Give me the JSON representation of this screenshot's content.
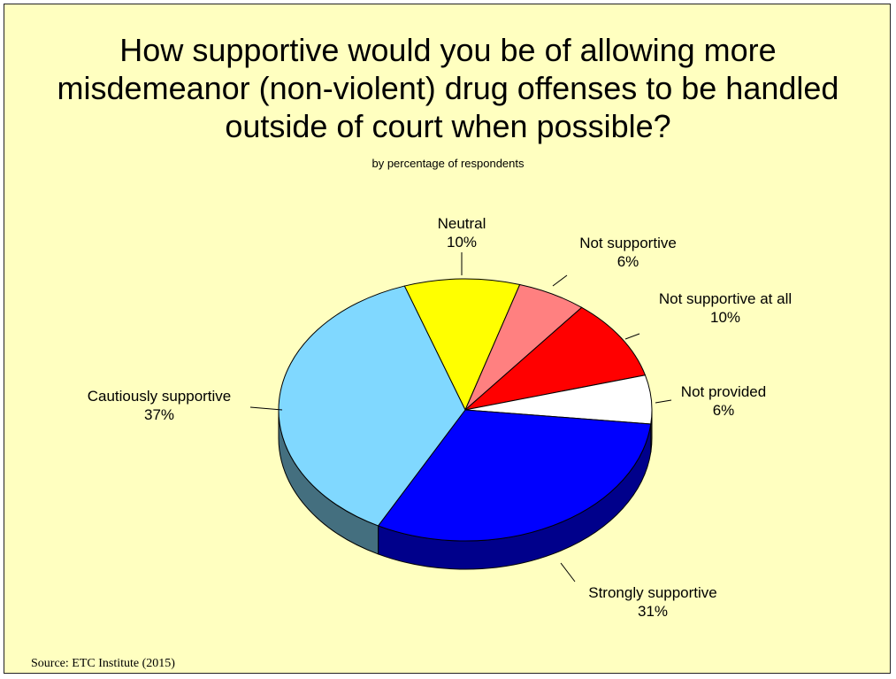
{
  "title_lines": [
    "How supportive would you be of allowing more",
    "misdemeanor (non-violent) drug offenses to be handled",
    "outside of court when possible?"
  ],
  "subtitle": "by percentage of respondents",
  "source": "Source:  ETC Institute (2015)",
  "chart_data": {
    "type": "pie",
    "title": "How supportive would you be of allowing more misdemeanor (non-violent) drug offenses to be handled outside of court when possible?",
    "subtitle": "by percentage of respondents",
    "slices": [
      {
        "label": "Neutral",
        "value": 10,
        "value_label": "10%",
        "color": "#ffff00",
        "side_color": "#aaaa00"
      },
      {
        "label": "Not supportive",
        "value": 6,
        "value_label": "6%",
        "color": "#ff8080",
        "side_color": "#aa5555"
      },
      {
        "label": "Not supportive at all",
        "value": 10,
        "value_label": "10%",
        "color": "#ff0000",
        "side_color": "#990000"
      },
      {
        "label": "Not provided",
        "value": 6,
        "value_label": "6%",
        "color": "#ffffff",
        "side_color": "#aaaaaa"
      },
      {
        "label": "Strongly supportive",
        "value": 31,
        "value_label": "31%",
        "color": "#0000ff",
        "side_color": "#00008b"
      },
      {
        "label": "Cautiously supportive",
        "value": 37,
        "value_label": "37%",
        "color": "#80d8ff",
        "side_color": "#446f7f"
      }
    ],
    "legend": "none",
    "style": "3d-pie"
  }
}
